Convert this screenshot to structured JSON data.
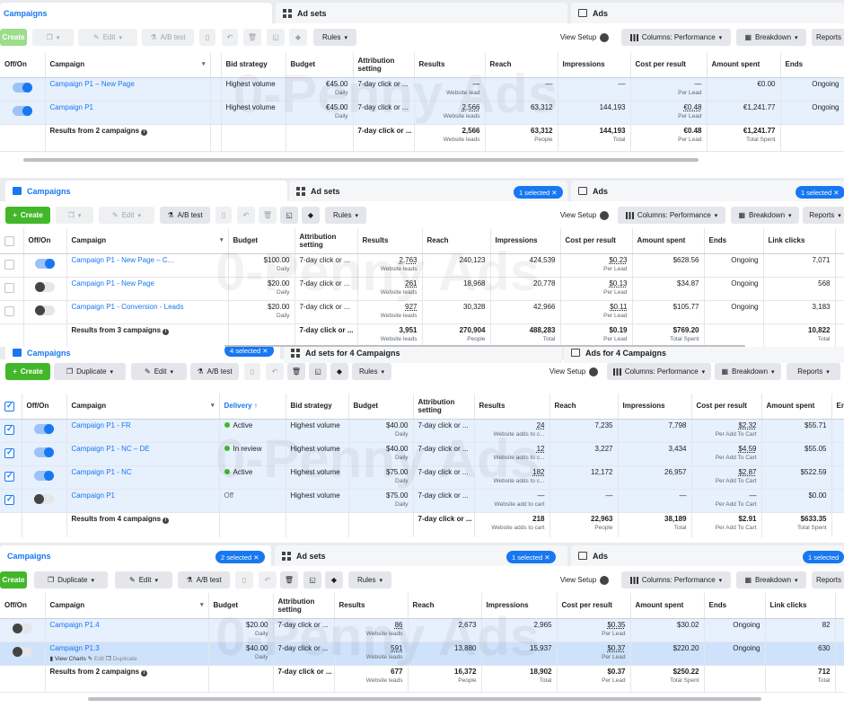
{
  "panel1": {
    "tabs": {
      "campaigns": "Campaigns",
      "adsets": "Ad sets",
      "ads": "Ads"
    },
    "toolbar": {
      "create": "Create",
      "edit": "Edit",
      "ab": "A/B test",
      "rules": "Rules",
      "view_setup": "View Setup",
      "columns": "Columns: Performance",
      "breakdown": "Breakdown",
      "reports": "Reports"
    },
    "headers": [
      "Off/On",
      "Campaign",
      "Bid strategy",
      "Budget",
      "Attribution setting",
      "Results",
      "Reach",
      "Impressions",
      "Cost per result",
      "Amount spent",
      "Ends"
    ],
    "rows": [
      {
        "name": "Campaign P1 – New Page",
        "bid": "Highest volume",
        "budget": "€45.00",
        "budget_sub": "Daily",
        "attr": "7-day click or ...",
        "results": "—",
        "results_sub": "Website lead",
        "reach": "—",
        "impr": "—",
        "cpr": "—",
        "cpr_sub": "Per Lead",
        "spent": "€0.00",
        "ends": "Ongoing",
        "on": true
      },
      {
        "name": "Campaign P1",
        "bid": "Highest volume",
        "budget": "€45.00",
        "budget_sub": "Daily",
        "attr": "7-day click or ...",
        "results": "2,566",
        "results_sub": "Website leads",
        "reach": "63,312",
        "impr": "144,193",
        "cpr": "€0.48",
        "cpr_sub": "Per Lead",
        "spent": "€1,241.77",
        "ends": "Ongoing",
        "on": true
      }
    ],
    "total": {
      "label": "Results from 2 campaigns",
      "attr": "7-day click or ...",
      "results": "2,566",
      "results_sub": "Website leads",
      "reach": "63,312",
      "reach_sub": "People",
      "impr": "144,193",
      "impr_sub": "Total",
      "cpr": "€0.48",
      "cpr_sub": "Per Lead",
      "spent": "€1,241.77",
      "spent_sub": "Total Spent"
    }
  },
  "panel2": {
    "tabs": {
      "campaigns": "Campaigns",
      "adsets": "Ad sets",
      "ads": "Ads",
      "adsets_pill": "1 selected",
      "ads_pill": "1 selected"
    },
    "toolbar": {
      "create": "Create",
      "edit": "Edit",
      "ab": "A/B test",
      "rules": "Rules",
      "view_setup": "View Setup",
      "columns": "Columns: Performance",
      "breakdown": "Breakdown",
      "reports": "Reports"
    },
    "headers": [
      "Off/On",
      "Campaign",
      "Budget",
      "Attribution setting",
      "Results",
      "Reach",
      "Impressions",
      "Cost per result",
      "Amount spent",
      "Ends",
      "Link clicks"
    ],
    "rows": [
      {
        "name": "Campaign P1 - New Page – C...",
        "budget": "$100.00",
        "budget_sub": "Daily",
        "attr": "7-day click or ...",
        "results": "2,763",
        "results_sub": "Website leads",
        "reach": "240,123",
        "impr": "424,539",
        "cpr": "$0.23",
        "cpr_sub": "Per Lead",
        "spent": "$628.56",
        "ends": "Ongoing",
        "clicks": "7,071",
        "on": true
      },
      {
        "name": "Campaign P1 - New Page",
        "budget": "$20.00",
        "budget_sub": "Daily",
        "attr": "7-day click or ...",
        "results": "261",
        "results_sub": "Website leads",
        "reach": "18,968",
        "impr": "20,778",
        "cpr": "$0.13",
        "cpr_sub": "Per Lead",
        "spent": "$34.87",
        "ends": "Ongoing",
        "clicks": "568",
        "on": false
      },
      {
        "name": "Campaign P1 - Conversion - Leads",
        "budget": "$20.00",
        "budget_sub": "Daily",
        "attr": "7-day click or ...",
        "results": "927",
        "results_sub": "Website leads",
        "reach": "30,328",
        "impr": "42,966",
        "cpr": "$0.11",
        "cpr_sub": "Per Lead",
        "spent": "$105.77",
        "ends": "Ongoing",
        "clicks": "3,183",
        "on": false
      }
    ],
    "total": {
      "label": "Results from 3 campaigns",
      "attr": "7-day click or ...",
      "results": "3,951",
      "results_sub": "Website leads",
      "reach": "270,904",
      "reach_sub": "People",
      "impr": "488,283",
      "impr_sub": "Total",
      "cpr": "$0.19",
      "cpr_sub": "Per Lead",
      "spent": "$769.20",
      "spent_sub": "Total Spent",
      "clicks": "10,822",
      "clicks_sub": "Total"
    }
  },
  "panel3": {
    "tabs": {
      "campaigns": "Campaigns",
      "campaigns_pill": "4 selected",
      "adsets": "Ad sets for 4 Campaigns",
      "ads": "Ads for 4 Campaigns"
    },
    "toolbar": {
      "create": "Create",
      "duplicate": "Duplicate",
      "edit": "Edit",
      "ab": "A/B test",
      "rules": "Rules",
      "view_setup": "View Setup",
      "columns": "Columns: Performance",
      "breakdown": "Breakdown",
      "reports": "Reports"
    },
    "headers": [
      "Off/On",
      "Campaign",
      "Delivery ↑",
      "Bid strategy",
      "Budget",
      "Attribution setting",
      "Results",
      "Reach",
      "Impressions",
      "Cost per result",
      "Amount spent",
      "Ends"
    ],
    "rows": [
      {
        "name": "Campaign P1 - FR",
        "delivery": "Active",
        "delivery_color": "#42b72a",
        "bid": "Highest volume",
        "budget": "$40.00",
        "budget_sub": "Daily",
        "attr": "7-day click or ...",
        "results": "24",
        "results_sub": "Website adds to c...",
        "reach": "7,235",
        "impr": "7,798",
        "cpr": "$2.32",
        "cpr_sub": "Per Add To Cart",
        "spent": "$55.71",
        "on": true
      },
      {
        "name": "Campaign P1 - NC – DE",
        "delivery": "In review",
        "delivery_color": "#42b72a",
        "bid": "Highest volume",
        "budget": "$40.00",
        "budget_sub": "Daily",
        "attr": "7-day click or ...",
        "results": "12",
        "results_sub": "Website adds to c...",
        "reach": "3,227",
        "impr": "3,434",
        "cpr": "$4.59",
        "cpr_sub": "Per Add To Cart",
        "spent": "$55.05",
        "on": true
      },
      {
        "name": "Campaign P1 - NC",
        "delivery": "Active",
        "delivery_color": "#42b72a",
        "bid": "Highest volume",
        "budget": "$75.00",
        "budget_sub": "Daily",
        "attr": "7-day click or ...",
        "results": "182",
        "results_sub": "Website adds to c...",
        "reach": "12,172",
        "impr": "26,957",
        "cpr": "$2.87",
        "cpr_sub": "Per Add To Cart",
        "spent": "$522.59",
        "on": true
      },
      {
        "name": "Campaign P1",
        "delivery": "Off",
        "delivery_color": "",
        "bid": "Highest volume",
        "budget": "$75.00",
        "budget_sub": "Daily",
        "attr": "7-day click or ...",
        "results": "—",
        "results_sub": "Website add to cart",
        "reach": "—",
        "impr": "—",
        "cpr": "—",
        "cpr_sub": "Per Add To Cart",
        "spent": "$0.00",
        "on": false
      }
    ],
    "total": {
      "label": "Results from 4 campaigns",
      "attr": "7-day click or ...",
      "results": "218",
      "results_sub": "Website adds to cart",
      "reach": "22,963",
      "reach_sub": "People",
      "impr": "38,189",
      "impr_sub": "Total",
      "cpr": "$2.91",
      "cpr_sub": "Per Add To Cart",
      "spent": "$633.35",
      "spent_sub": "Total Spent"
    }
  },
  "panel4": {
    "tabs": {
      "campaigns": "Campaigns",
      "campaigns_pill": "2 selected",
      "adsets": "Ad sets",
      "adsets_pill": "1 selected",
      "ads": "Ads",
      "ads_pill": "1 selected"
    },
    "toolbar": {
      "create": "Create",
      "duplicate": "Duplicate",
      "edit": "Edit",
      "ab": "A/B test",
      "rules": "Rules",
      "view_setup": "View Setup",
      "columns": "Columns: Performance",
      "breakdown": "Breakdown",
      "reports": "Reports"
    },
    "headers": [
      "Off/On",
      "Campaign",
      "Budget",
      "Attribution setting",
      "Results",
      "Reach",
      "Impressions",
      "Cost per result",
      "Amount spent",
      "Ends",
      "Link clicks"
    ],
    "rows": [
      {
        "name": "Campaign P1.4",
        "budget": "$20.00",
        "budget_sub": "Daily",
        "attr": "7-day click or ...",
        "results": "86",
        "results_sub": "Website leads",
        "reach": "2,673",
        "impr": "2,965",
        "cpr": "$0.35",
        "cpr_sub": "Per Lead",
        "spent": "$30.02",
        "ends": "Ongoing",
        "clicks": "82",
        "on": false
      },
      {
        "name": "Campaign P1.3",
        "budget": "$40.00",
        "budget_sub": "Daily",
        "attr": "7-day click or ...",
        "results": "591",
        "results_sub": "Website leads",
        "reach": "13,880",
        "impr": "15,937",
        "cpr": "$0.37",
        "cpr_sub": "Per Lead",
        "spent": "$220.20",
        "ends": "Ongoing",
        "clicks": "630",
        "on": false,
        "actions": {
          "charts": "View Charts",
          "edit": "Edit",
          "duplicate": "Duplicate"
        }
      }
    ],
    "total": {
      "label": "Results from 2 campaigns",
      "attr": "7-day click or ...",
      "results": "677",
      "results_sub": "Website leads",
      "reach": "16,372",
      "reach_sub": "People",
      "impr": "18,902",
      "impr_sub": "Total",
      "cpr": "$0.37",
      "cpr_sub": "Per Lead",
      "spent": "$250.22",
      "spent_sub": "Total Spent",
      "clicks": "712",
      "clicks_sub": "Total"
    }
  },
  "watermark": "0-Penny Ads"
}
